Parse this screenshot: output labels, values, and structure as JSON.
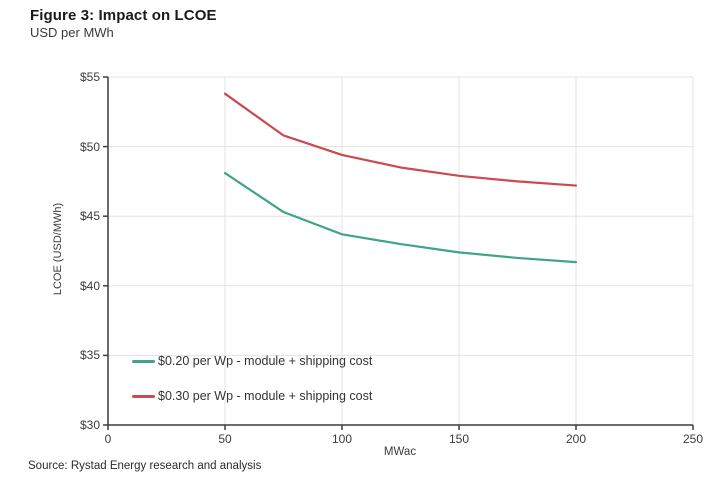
{
  "header": {
    "title": "Figure 3: Impact on LCOE",
    "subtitle": "USD per MWh"
  },
  "footer": {
    "source": "Source: Rystad Energy research and analysis"
  },
  "chart_data": {
    "type": "line",
    "title": "Figure 3: Impact on LCOE",
    "subtitle": "USD per MWh",
    "xlabel": "MWac",
    "ylabel": "LCOE (USD/MWh)",
    "xlim": [
      0,
      250
    ],
    "ylim": [
      30,
      55
    ],
    "x_ticks": [
      0,
      50,
      100,
      150,
      200,
      250
    ],
    "x_tick_labels": [
      "0",
      "50",
      "100",
      "150",
      "200",
      "250"
    ],
    "y_ticks": [
      30,
      35,
      40,
      45,
      50,
      55
    ],
    "y_tick_labels": [
      "$30",
      "$35",
      "$40",
      "$45",
      "$50",
      "$55"
    ],
    "grid": true,
    "legend_position": "inside-bottom-left",
    "x": [
      50,
      75,
      100,
      125,
      150,
      175,
      200
    ],
    "series": [
      {
        "name": "$0.20 per Wp - module + shipping cost",
        "color": "#41a48a",
        "values": [
          48.1,
          45.3,
          43.7,
          43.0,
          42.4,
          42.0,
          41.7
        ]
      },
      {
        "name": "$0.30 per Wp - module + shipping cost",
        "color": "#ca4a50",
        "values": [
          53.8,
          50.8,
          49.4,
          48.5,
          47.9,
          47.5,
          47.2
        ]
      }
    ],
    "colors": {
      "axis": "#3d3d3d",
      "grid": "#e3e3e3",
      "tick_text": "#3c3c3c"
    }
  }
}
